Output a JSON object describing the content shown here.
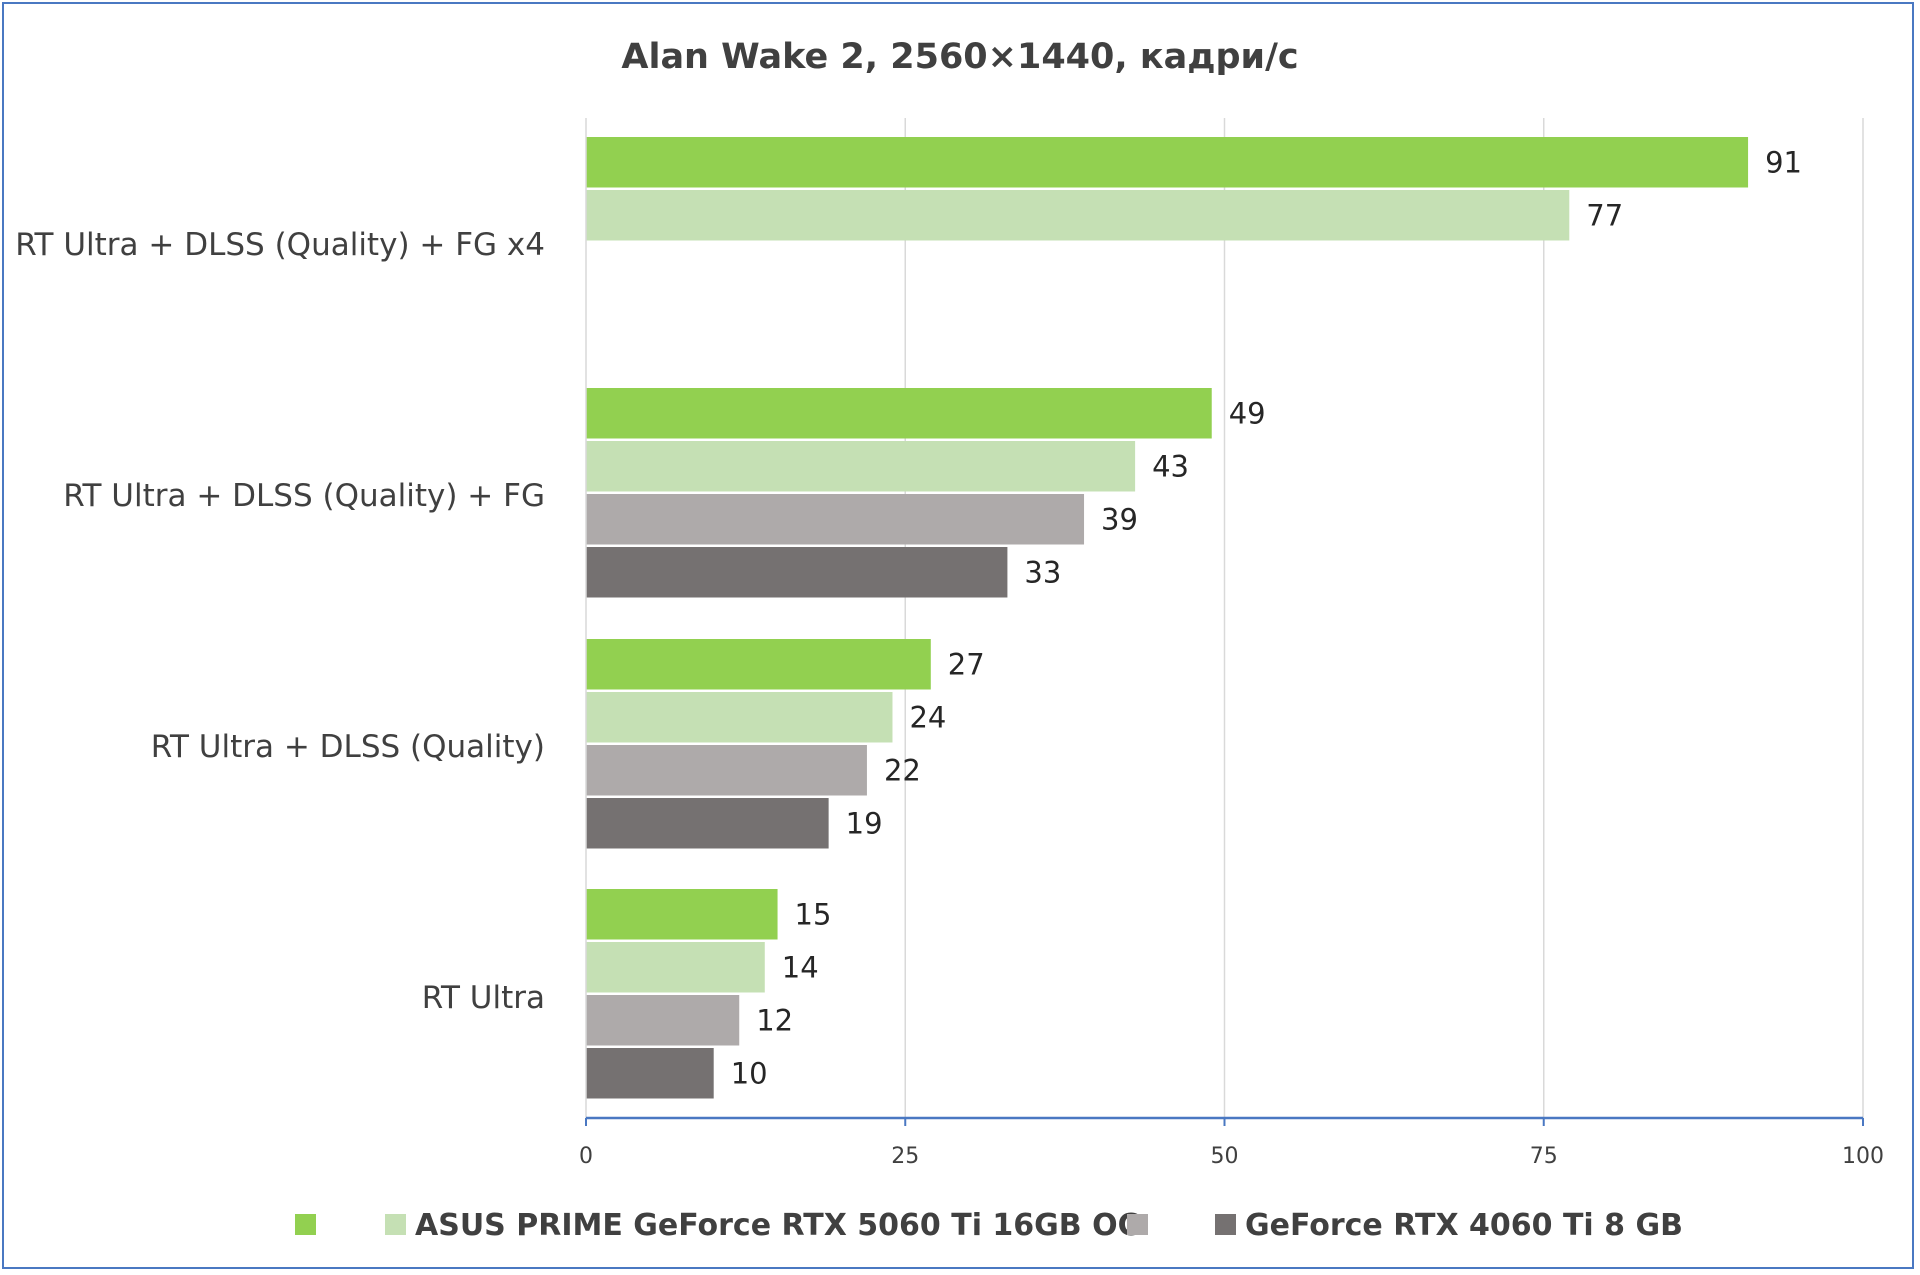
{
  "chart_data": {
    "type": "bar",
    "orientation": "horizontal",
    "title": "Alan Wake 2, 2560×1440, кадри/с",
    "xlabel": "",
    "ylabel": "",
    "xlim": [
      0,
      100
    ],
    "x_ticks": [
      0,
      25,
      50,
      75,
      100
    ],
    "grid": true,
    "legend_position": "bottom",
    "categories": [
      "RT Ultra + DLSS (Quality) + FG x4",
      "RT Ultra + DLSS (Quality) + FG",
      "RT Ultra + DLSS (Quality)",
      "RT Ultra"
    ],
    "series": [
      {
        "color": "#92d050",
        "values": [
          91,
          49,
          27,
          15
        ]
      },
      {
        "color": "#c5e0b4",
        "values": [
          77,
          43,
          24,
          14
        ]
      },
      {
        "color": "#aeaaaa",
        "values": [
          null,
          39,
          22,
          12
        ]
      },
      {
        "color": "#757171",
        "values": [
          null,
          33,
          19,
          10
        ]
      }
    ],
    "legend": [
      {
        "label": "",
        "color": "#92d050"
      },
      {
        "label": "ASUS PRIME GeForce RTX 5060 Ti 16GB OC",
        "color": "#c5e0b4"
      },
      {
        "label": "",
        "color": "#aeaaaa"
      },
      {
        "label": "GeForce RTX 4060 Ti 8 GB",
        "color": "#757171"
      }
    ],
    "colors": {
      "frame": "#4a78c2",
      "axis": "#4a78c2",
      "grid": "#d9d9d9"
    }
  }
}
